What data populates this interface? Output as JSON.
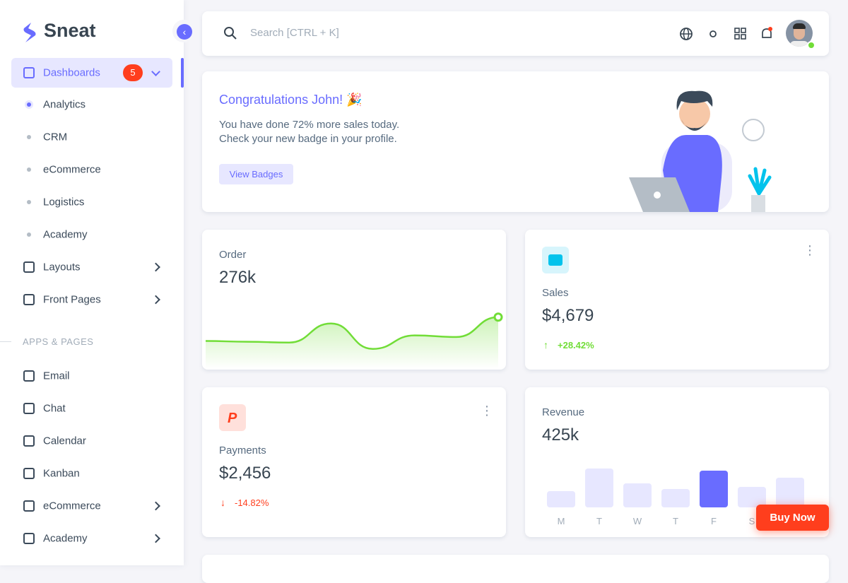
{
  "brand": "Sneat",
  "sidebar": {
    "dashboards": {
      "label": "Dashboards",
      "badge": 5
    },
    "dashboard_items": [
      "Analytics",
      "CRM",
      "eCommerce",
      "Logistics",
      "Academy"
    ],
    "menu_items": [
      "Layouts",
      "Front Pages"
    ],
    "section_title": "APPS & PAGES",
    "app_items": [
      "Email",
      "Chat",
      "Calendar",
      "Kanban",
      "eCommerce",
      "Academy"
    ]
  },
  "search_placeholder": "Search [CTRL + K]",
  "welcome": {
    "title": "Congratulations John! 🎉",
    "line1": "You have done 72% more sales today.",
    "line2": "Check your new badge in your profile.",
    "button": "View Badges"
  },
  "order": {
    "label": "Order",
    "value": "276k",
    "chart": {
      "type": "line",
      "values": [
        20,
        19,
        18,
        42,
        10,
        27,
        25,
        50
      ],
      "ylim": [
        0,
        60
      ],
      "color": "#71dd37"
    }
  },
  "sales": {
    "label": "Sales",
    "value": "$4,679",
    "change": "+28.42%"
  },
  "payments": {
    "label": "Payments",
    "value": "$2,456",
    "change": "-14.82%"
  },
  "revenue": {
    "label": "Revenue",
    "value": "425k",
    "chart": {
      "type": "bar",
      "categories": [
        "M",
        "T",
        "W",
        "T",
        "F",
        "S",
        null
      ],
      "values": [
        23,
        55,
        34,
        26,
        52,
        29,
        42
      ],
      "ylim": [
        0,
        60
      ],
      "colors": [
        "#e7e7ff",
        "#e7e7ff",
        "#e7e7ff",
        "#e7e7ff",
        "#696cff",
        "#e7e7ff",
        "#e7e7ff"
      ]
    }
  },
  "buy_now": "Buy Now"
}
